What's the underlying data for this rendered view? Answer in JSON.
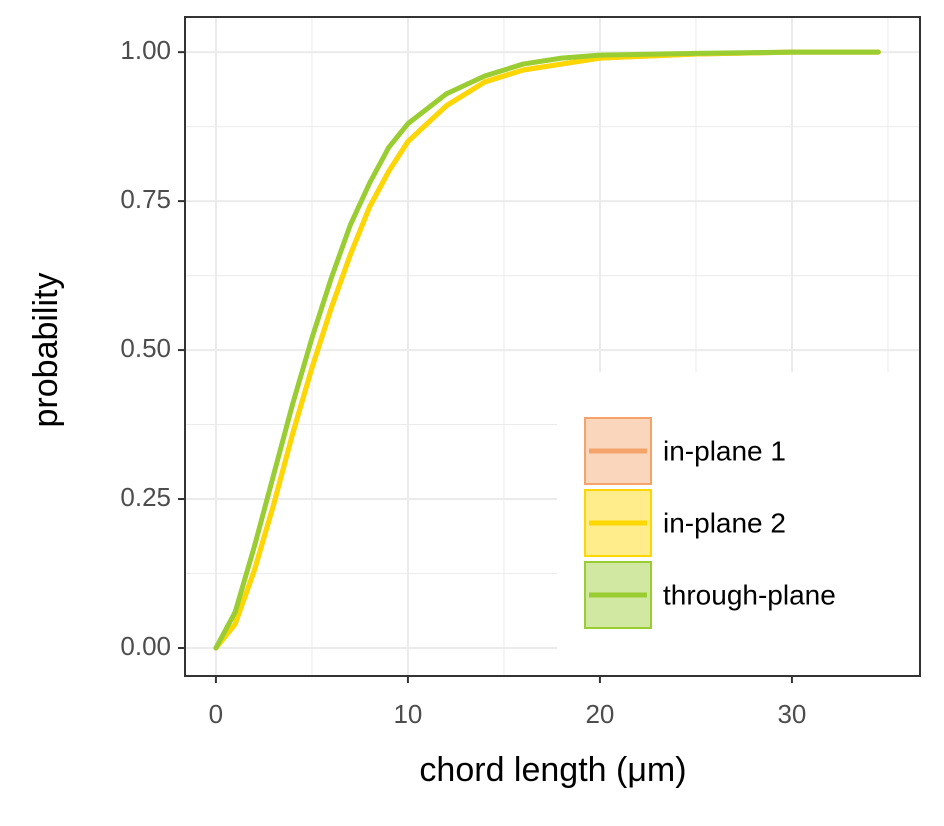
{
  "chart_data": {
    "type": "line",
    "x_label": "chord length (μm)",
    "y_label": "probability",
    "x": [
      0,
      1,
      2,
      3,
      4,
      5,
      6,
      7,
      8,
      9,
      10,
      12,
      14,
      16,
      18,
      20,
      25,
      30,
      34.5
    ],
    "series": [
      {
        "name": "in-plane 1",
        "color": "#f4a46a",
        "values": [
          0,
          0.04,
          0.13,
          0.24,
          0.36,
          0.47,
          0.57,
          0.66,
          0.74,
          0.8,
          0.85,
          0.91,
          0.95,
          0.97,
          0.98,
          0.99,
          0.997,
          1,
          1
        ]
      },
      {
        "name": "in-plane 2",
        "color": "#ffd700",
        "values": [
          0,
          0.04,
          0.13,
          0.24,
          0.36,
          0.47,
          0.57,
          0.66,
          0.74,
          0.8,
          0.85,
          0.91,
          0.95,
          0.97,
          0.98,
          0.99,
          0.997,
          1,
          1
        ]
      },
      {
        "name": "through-plane",
        "color": "#9acd32",
        "values": [
          0,
          0.06,
          0.17,
          0.29,
          0.41,
          0.52,
          0.62,
          0.71,
          0.78,
          0.84,
          0.88,
          0.93,
          0.96,
          0.98,
          0.99,
          0.995,
          0.998,
          1,
          1
        ]
      }
    ],
    "xlim": [
      -1.61,
      36.67
    ],
    "ylim": [
      -0.047,
      1.059
    ],
    "xticks": [
      0,
      10,
      20,
      30
    ],
    "yticks": [
      {
        "value": 0,
        "label": "0.00"
      },
      {
        "value": 0.25,
        "label": "0.25"
      },
      {
        "value": 0.5,
        "label": "0.50"
      },
      {
        "value": 0.75,
        "label": "0.75"
      },
      {
        "value": 1,
        "label": "1.00"
      }
    ],
    "x_minor_grid": [
      5,
      15,
      25,
      35
    ],
    "y_minor_grid": [
      0.125,
      0.375,
      0.625,
      0.875
    ],
    "grid": true,
    "legend_position": "bottom-right"
  }
}
